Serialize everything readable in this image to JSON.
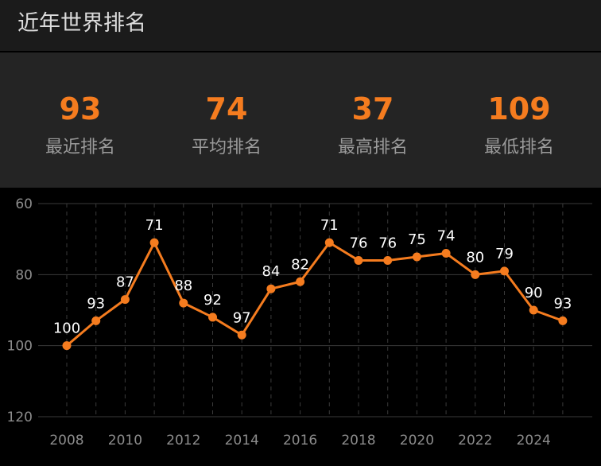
{
  "header": {
    "title": "近年世界排名"
  },
  "stats": [
    {
      "value": "93",
      "label": "最近排名"
    },
    {
      "value": "74",
      "label": "平均排名"
    },
    {
      "value": "37",
      "label": "最高排名"
    },
    {
      "value": "109",
      "label": "最低排名"
    }
  ],
  "colors": {
    "accent": "#f57c1f",
    "gridline": "#3a3a3a",
    "axis_text": "#8c8c8c",
    "data_label": "#ffffff"
  },
  "chart_data": {
    "type": "line",
    "title": "",
    "xlabel": "",
    "ylabel": "",
    "y_reversed": true,
    "ylim": [
      60,
      120
    ],
    "y_ticks": [
      60,
      80,
      100,
      120
    ],
    "x_tick_labels": [
      "2008",
      "2010",
      "2012",
      "2014",
      "2016",
      "2018",
      "2020",
      "2022",
      "2024"
    ],
    "grid": true,
    "x": [
      2008,
      2009,
      2010,
      2011,
      2012,
      2013,
      2014,
      2015,
      2016,
      2017,
      2018,
      2019,
      2020,
      2021,
      2022,
      2023,
      2024,
      2025
    ],
    "series": [
      {
        "values": [
          100,
          93,
          87,
          71,
          88,
          92,
          97,
          84,
          82,
          71,
          76,
          76,
          75,
          74,
          80,
          79,
          90,
          93
        ]
      }
    ]
  }
}
